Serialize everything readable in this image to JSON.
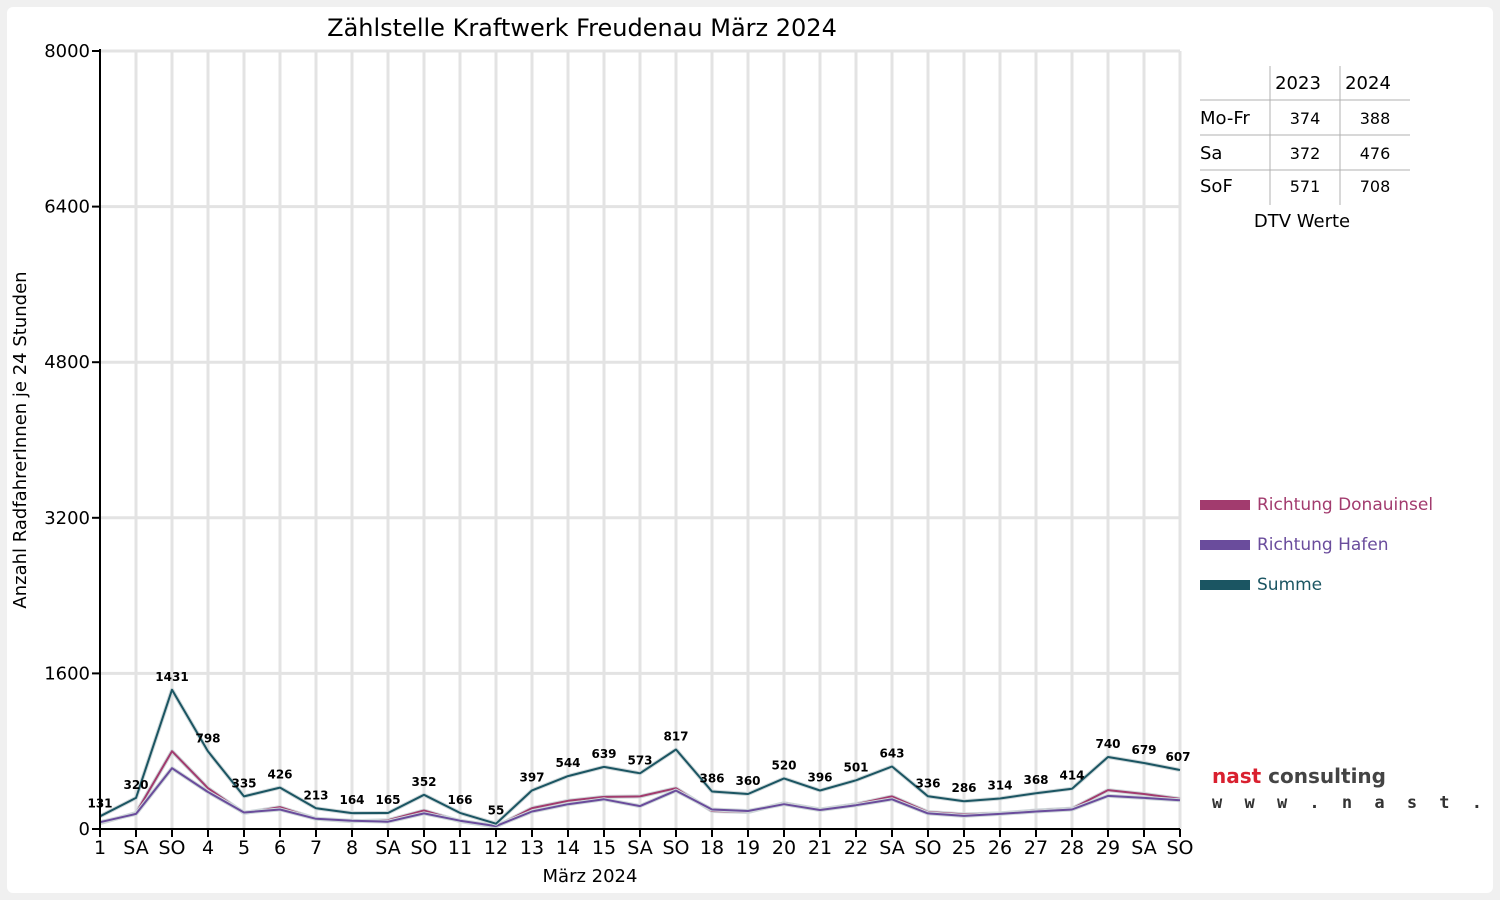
{
  "chart_data": {
    "type": "line",
    "title": "Zählstelle Kraftwerk Freudenau März 2024",
    "xlabel": "März 2024",
    "ylabel": "Anzahl RadfahrerInnen je 24 Stunden",
    "ylim": [
      0,
      8000
    ],
    "yticks": [
      "0",
      "1600",
      "3200",
      "4800",
      "6400",
      "8000"
    ],
    "categories": [
      "1",
      "SA",
      "SO",
      "4",
      "5",
      "6",
      "7",
      "8",
      "SA",
      "SO",
      "11",
      "12",
      "13",
      "14",
      "15",
      "SA",
      "SO",
      "18",
      "19",
      "20",
      "21",
      "22",
      "SA",
      "SO",
      "25",
      "26",
      "27",
      "28",
      "29",
      "SA",
      "SO"
    ],
    "highlight_categories": [
      "SO"
    ],
    "highlight_color": "#ff0000",
    "grid": true,
    "legend_position": "right",
    "series": [
      {
        "name": "Richtung Donauinsel",
        "color": "#a23b6e",
        "values": [
          60,
          165,
          800,
          420,
          165,
          225,
          105,
          80,
          90,
          190,
          80,
          25,
          215,
          290,
          330,
          335,
          420,
          185,
          175,
          265,
          200,
          255,
          335,
          175,
          150,
          160,
          190,
          210,
          400,
          360,
          310
        ]
      },
      {
        "name": "Richtung Hafen",
        "color": "#6a4c9c",
        "values": [
          70,
          155,
          625,
          380,
          170,
          200,
          105,
          85,
          75,
          160,
          85,
          30,
          180,
          255,
          305,
          235,
          395,
          200,
          185,
          255,
          195,
          245,
          305,
          160,
          135,
          155,
          180,
          200,
          340,
          320,
          295
        ]
      },
      {
        "name": "Summe",
        "color": "#1b5562",
        "values": [
          131,
          320,
          1431,
          798,
          335,
          426,
          213,
          164,
          165,
          352,
          166,
          55,
          397,
          544,
          639,
          573,
          817,
          386,
          360,
          520,
          396,
          501,
          643,
          336,
          286,
          314,
          368,
          414,
          740,
          679,
          607
        ]
      }
    ],
    "data_labels": [
      "131",
      "320",
      "1431",
      "798",
      "335",
      "426",
      "213",
      "164",
      "165",
      "352",
      "166",
      "55",
      "397",
      "544",
      "639",
      "573",
      "817",
      "386",
      "360",
      "520",
      "396",
      "501",
      "643",
      "336",
      "286",
      "314",
      "368",
      "414",
      "740",
      "679",
      "607"
    ]
  },
  "dtv_table": {
    "columns": [
      "2023",
      "2024"
    ],
    "rows": [
      {
        "label": "Mo-Fr",
        "values": [
          "374",
          "388"
        ]
      },
      {
        "label": "Sa",
        "values": [
          "372",
          "476"
        ]
      },
      {
        "label": "SoF",
        "values": [
          "571",
          "708"
        ]
      }
    ],
    "caption": "DTV Werte"
  },
  "logo": {
    "name": "nast consulting",
    "url": "w w w . n a s t . a t",
    "color_red": "#d9202f",
    "color_dark": "#444444"
  }
}
